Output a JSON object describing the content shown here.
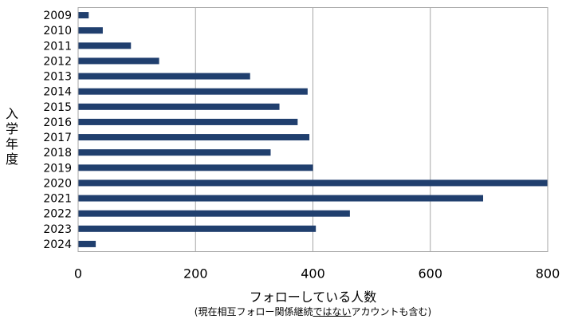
{
  "chart_data": {
    "type": "bar",
    "orientation": "horizontal",
    "title": "",
    "ylabel": "入学年度",
    "xlabel": "フォローしている人数",
    "note": {
      "prefix": "(現在相互フォロー関係継続",
      "emphasis": "ではない",
      "suffix": "アカウントも含む)"
    },
    "categories": [
      "2009",
      "2010",
      "2011",
      "2012",
      "2013",
      "2014",
      "2015",
      "2016",
      "2017",
      "2018",
      "2019",
      "2020",
      "2021",
      "2022",
      "2023",
      "2024"
    ],
    "values": [
      18,
      42,
      90,
      138,
      293,
      391,
      343,
      374,
      394,
      328,
      400,
      800,
      690,
      463,
      405,
      30
    ],
    "xlim": [
      0,
      800
    ],
    "xticks": [
      0,
      200,
      400,
      600,
      800
    ],
    "grid": "vertical",
    "bar_color": "#203f6e",
    "grid_color": "#a6a6a6",
    "legend": "none"
  }
}
